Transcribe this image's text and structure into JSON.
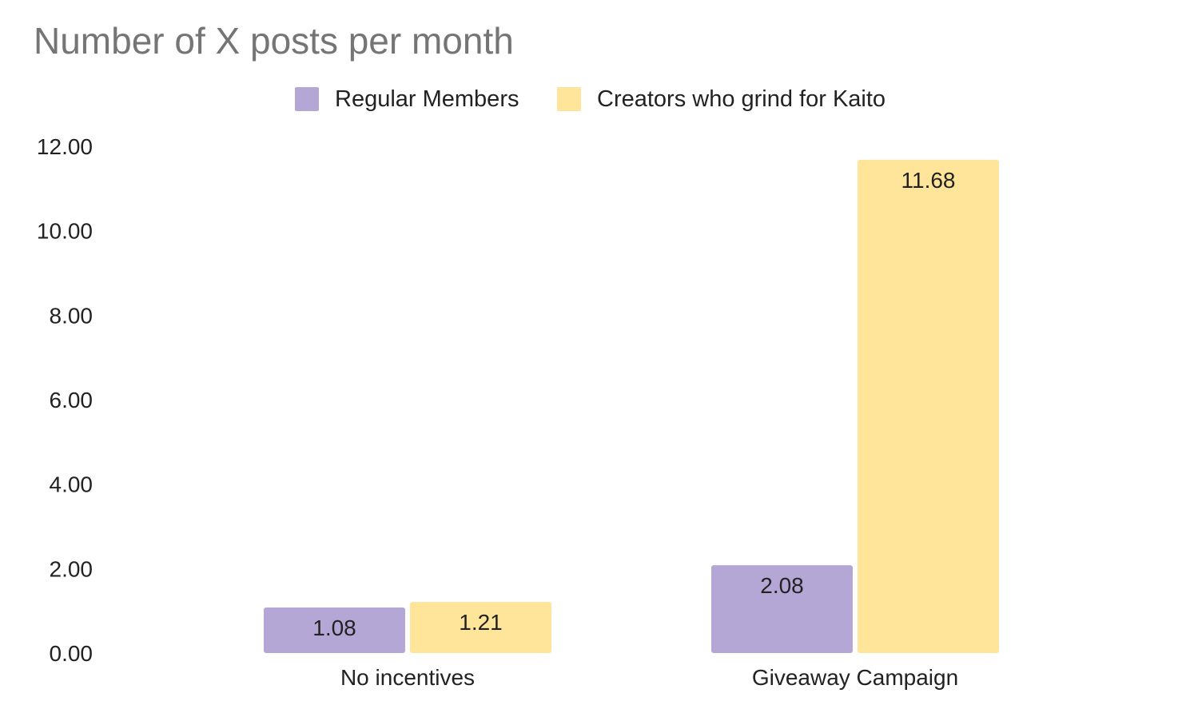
{
  "chart_data": {
    "type": "bar",
    "title": "Number of X posts per month",
    "xlabel": "",
    "ylabel": "",
    "categories": [
      "No incentives",
      "Giveaway Campaign"
    ],
    "series": [
      {
        "name": "Regular Members",
        "values": [
          1.08,
          2.08
        ],
        "labels": [
          "1.08",
          "2.08"
        ],
        "color": "#b4a7d6"
      },
      {
        "name": "Creators who grind for Kaito",
        "values": [
          1.21,
          11.68
        ],
        "labels": [
          "1.21",
          "11.68"
        ],
        "color": "#ffe599"
      }
    ],
    "ylim": [
      0,
      12
    ],
    "yticks": [
      "0.00",
      "2.00",
      "4.00",
      "6.00",
      "8.00",
      "10.00",
      "12.00"
    ],
    "legend_position": "top",
    "grid": false
  }
}
